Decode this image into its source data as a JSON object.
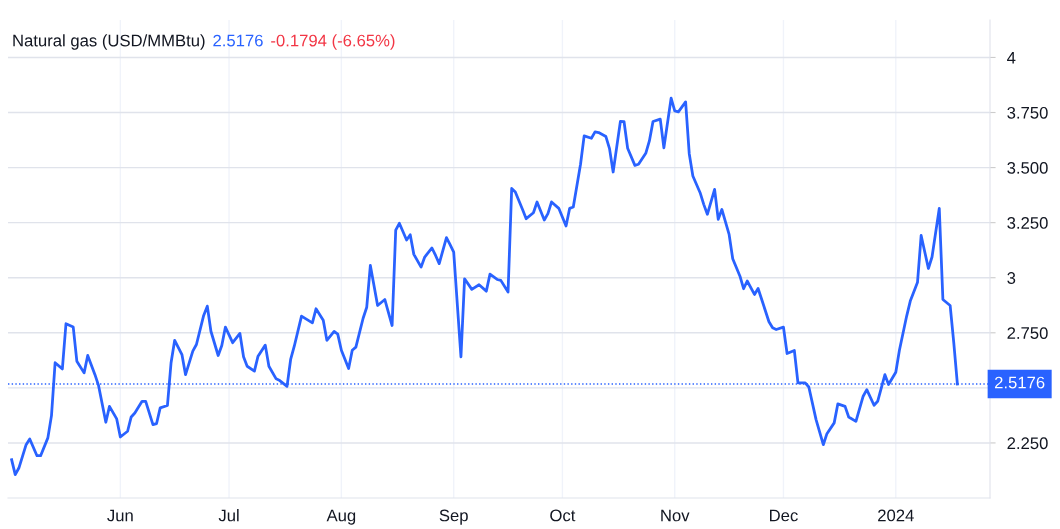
{
  "chart_data": {
    "type": "line",
    "title": "Natural gas (USD/MMBtu)",
    "annotations": [
      "2.5176",
      "-0.1794 (-6.65%)"
    ],
    "x": [
      "2023-05-02",
      "2023-05-03",
      "2023-05-04",
      "2023-05-06",
      "2023-05-07",
      "2023-05-09",
      "2023-05-10",
      "2023-05-12",
      "2023-05-13",
      "2023-05-14",
      "2023-05-16",
      "2023-05-17",
      "2023-05-19",
      "2023-05-20",
      "2023-05-22",
      "2023-05-23",
      "2023-05-25",
      "2023-05-26",
      "2023-05-28",
      "2023-05-29",
      "2023-05-31",
      "2023-06-01",
      "2023-06-03",
      "2023-06-04",
      "2023-06-05",
      "2023-06-07",
      "2023-06-08",
      "2023-06-10",
      "2023-06-11",
      "2023-06-12",
      "2023-06-14",
      "2023-06-15",
      "2023-06-16",
      "2023-06-18",
      "2023-06-19",
      "2023-06-21",
      "2023-06-22",
      "2023-06-24",
      "2023-06-25",
      "2023-06-26",
      "2023-06-28",
      "2023-06-29",
      "2023-06-30",
      "2023-07-02",
      "2023-07-04",
      "2023-07-05",
      "2023-07-06",
      "2023-07-08",
      "2023-07-09",
      "2023-07-11",
      "2023-07-12",
      "2023-07-14",
      "2023-07-15",
      "2023-07-17",
      "2023-07-18",
      "2023-07-19",
      "2023-07-21",
      "2023-07-24",
      "2023-07-25",
      "2023-07-27",
      "2023-07-28",
      "2023-07-30",
      "2023-07-31",
      "2023-08-01",
      "2023-08-03",
      "2023-08-04",
      "2023-08-05",
      "2023-08-07",
      "2023-08-08",
      "2023-08-09",
      "2023-08-11",
      "2023-08-13",
      "2023-08-15",
      "2023-08-16",
      "2023-08-17",
      "2023-08-19",
      "2023-08-20",
      "2023-08-21",
      "2023-08-23",
      "2023-08-24",
      "2023-08-26",
      "2023-08-27",
      "2023-08-28",
      "2023-08-30",
      "2023-08-31",
      "2023-09-01",
      "2023-09-03",
      "2023-09-04",
      "2023-09-06",
      "2023-09-08",
      "2023-09-10",
      "2023-09-11",
      "2023-09-13",
      "2023-09-14",
      "2023-09-16",
      "2023-09-17",
      "2023-09-18",
      "2023-09-20",
      "2023-09-21",
      "2023-09-23",
      "2023-09-24",
      "2023-09-26",
      "2023-09-27",
      "2023-09-28",
      "2023-09-30",
      "2023-10-02",
      "2023-10-03",
      "2023-10-04",
      "2023-10-06",
      "2023-10-07",
      "2023-10-09",
      "2023-10-10",
      "2023-10-11",
      "2023-10-13",
      "2023-10-14",
      "2023-10-15",
      "2023-10-17",
      "2023-10-18",
      "2023-10-19",
      "2023-10-21",
      "2023-10-22",
      "2023-10-24",
      "2023-10-25",
      "2023-10-26",
      "2023-10-28",
      "2023-10-29",
      "2023-10-31",
      "2023-11-01",
      "2023-11-02",
      "2023-11-04",
      "2023-11-05",
      "2023-11-06",
      "2023-11-08",
      "2023-11-09",
      "2023-11-10",
      "2023-11-12",
      "2023-11-13",
      "2023-11-14",
      "2023-11-16",
      "2023-11-17",
      "2023-11-19",
      "2023-11-20",
      "2023-11-21",
      "2023-11-23",
      "2023-11-24",
      "2023-11-25",
      "2023-11-27",
      "2023-11-28",
      "2023-11-29",
      "2023-12-01",
      "2023-12-02",
      "2023-12-04",
      "2023-12-05",
      "2023-12-07",
      "2023-12-08",
      "2023-12-10",
      "2023-12-12",
      "2023-12-13",
      "2023-12-15",
      "2023-12-16",
      "2023-12-18",
      "2023-12-19",
      "2023-12-21",
      "2023-12-23",
      "2023-12-24",
      "2023-12-26",
      "2023-12-27",
      "2023-12-29",
      "2023-12-30",
      "2024-01-01",
      "2024-01-02",
      "2024-01-04",
      "2024-01-05",
      "2024-01-07",
      "2024-01-08",
      "2024-01-10",
      "2024-01-11",
      "2024-01-13",
      "2024-01-14",
      "2024-01-16",
      "2024-01-17",
      "2024-01-18"
    ],
    "series": [
      {
        "color": "#2962ff",
        "values": [
          2.174,
          2.106,
          2.136,
          2.242,
          2.268,
          2.192,
          2.192,
          2.273,
          2.374,
          2.614,
          2.586,
          2.791,
          2.776,
          2.621,
          2.568,
          2.647,
          2.56,
          2.51,
          2.344,
          2.416,
          2.359,
          2.277,
          2.303,
          2.368,
          2.386,
          2.439,
          2.439,
          2.333,
          2.338,
          2.409,
          2.42,
          2.614,
          2.716,
          2.651,
          2.56,
          2.667,
          2.697,
          2.829,
          2.871,
          2.757,
          2.647,
          2.692,
          2.776,
          2.705,
          2.747,
          2.641,
          2.598,
          2.576,
          2.644,
          2.694,
          2.598,
          2.541,
          2.533,
          2.507,
          2.629,
          2.689,
          2.826,
          2.795,
          2.859,
          2.807,
          2.716,
          2.756,
          2.744,
          2.671,
          2.588,
          2.671,
          2.685,
          2.816,
          2.866,
          3.056,
          2.874,
          2.901,
          2.783,
          3.216,
          3.247,
          3.171,
          3.195,
          3.106,
          3.048,
          3.094,
          3.135,
          3.101,
          3.064,
          3.182,
          3.15,
          3.116,
          2.641,
          2.995,
          2.947,
          2.968,
          2.939,
          3.016,
          2.992,
          2.988,
          2.935,
          3.405,
          3.389,
          3.31,
          3.268,
          3.295,
          3.344,
          3.262,
          3.291,
          3.344,
          3.315,
          3.235,
          3.315,
          3.321,
          3.515,
          3.644,
          3.633,
          3.662,
          3.659,
          3.641,
          3.586,
          3.48,
          3.71,
          3.709,
          3.588,
          3.51,
          3.515,
          3.565,
          3.621,
          3.709,
          3.72,
          3.59,
          3.815,
          3.757,
          3.753,
          3.798,
          3.563,
          3.462,
          3.386,
          3.333,
          3.288,
          3.401,
          3.265,
          3.31,
          3.197,
          3.086,
          3.007,
          2.95,
          2.985,
          2.924,
          2.951,
          2.901,
          2.8,
          2.773,
          2.765,
          2.776,
          2.656,
          2.67,
          2.523,
          2.523,
          2.504,
          2.356,
          2.242,
          2.292,
          2.341,
          2.427,
          2.416,
          2.368,
          2.348,
          2.462,
          2.492,
          2.421,
          2.439,
          2.56,
          2.515,
          2.571,
          2.671,
          2.826,
          2.894,
          2.98,
          3.192,
          3.042,
          3.094,
          3.315,
          2.901,
          2.874,
          2.705,
          2.5176
        ]
      }
    ],
    "xlim": [
      "2023-05-01",
      "2024-01-27"
    ],
    "xticks": [
      {
        "value": "2023-06-01",
        "label": "Jun"
      },
      {
        "value": "2023-07-01",
        "label": "Jul"
      },
      {
        "value": "2023-08-01",
        "label": "Aug"
      },
      {
        "value": "2023-09-01",
        "label": "Sep"
      },
      {
        "value": "2023-10-01",
        "label": "Oct"
      },
      {
        "value": "2023-11-01",
        "label": "Nov"
      },
      {
        "value": "2023-12-01",
        "label": "Dec"
      },
      {
        "value": "2024-01-01",
        "label": "2024"
      }
    ],
    "ylim": [
      2.0,
      4.17
    ],
    "yticks": [
      {
        "value": 2.25,
        "label": "2.250"
      },
      {
        "value": 2.5,
        "label": null
      },
      {
        "value": 2.75,
        "label": "2.750"
      },
      {
        "value": 3,
        "label": "3"
      },
      {
        "value": 3.25,
        "label": "3.250"
      },
      {
        "value": 3.5,
        "label": "3.500"
      },
      {
        "value": 3.75,
        "label": "3.750"
      },
      {
        "value": 4,
        "label": "4"
      }
    ],
    "ref_lines": [
      {
        "axis": "y",
        "value": 2.5176,
        "label": "2.5176",
        "color": "#2962ff",
        "line_style": "dotted"
      }
    ],
    "grid": true,
    "legend": false,
    "marker": "none",
    "line_style": "solid"
  }
}
